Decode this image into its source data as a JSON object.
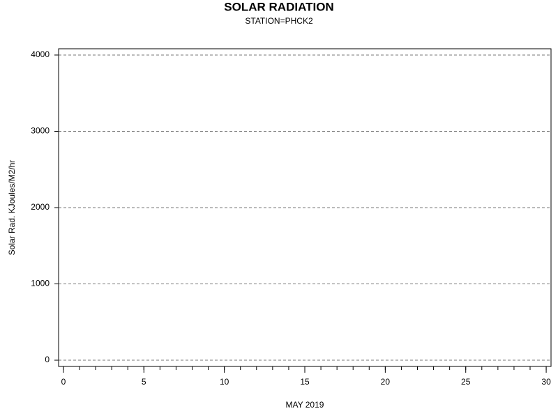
{
  "chart_data": {
    "type": "line",
    "title": "SOLAR RADIATION",
    "subtitle": "STATION=PHCK2",
    "x_label": "MAY 2019",
    "y_label": "Solar Rad. KJoules/M2/hr",
    "series": [],
    "xlim": [
      -0.3,
      30.3
    ],
    "xticks": [
      0,
      5,
      10,
      15,
      20,
      25,
      30
    ],
    "xminorticks": [
      0,
      1,
      2,
      3,
      4,
      5,
      6,
      7,
      8,
      9,
      10,
      11,
      12,
      13,
      14,
      15,
      16,
      17,
      18,
      19,
      20,
      21,
      22,
      23,
      24,
      25,
      26,
      27,
      28,
      29,
      30
    ],
    "ylim": [
      -82,
      4082
    ],
    "yticks": [
      0,
      1000,
      2000,
      3000,
      4000
    ],
    "grid": true
  }
}
